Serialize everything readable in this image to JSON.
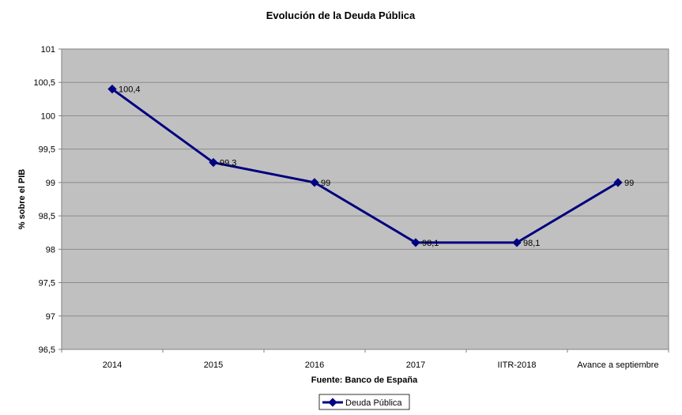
{
  "chart_data": {
    "type": "line",
    "title": "Evolución de la Deuda Pública",
    "xlabel": "Fuente: Banco de España",
    "ylabel": "% sobre el PIB",
    "categories": [
      "2014",
      "2015",
      "2016",
      "2017",
      "IITR-2018",
      "Avance a septiembre"
    ],
    "series": [
      {
        "name": "Deuda Pública",
        "values": [
          100.4,
          99.3,
          99,
          98.1,
          98.1,
          99
        ],
        "labels": [
          "100,4",
          "99,3",
          "99",
          "98,1",
          "98,1",
          "99"
        ],
        "color": "#000080"
      }
    ],
    "ylim": [
      96.5,
      101
    ],
    "yticks": [
      96.5,
      97,
      97.5,
      98,
      98.5,
      99,
      99.5,
      100,
      100.5,
      101
    ],
    "ytick_labels": [
      "96,5",
      "97",
      "97,5",
      "98",
      "98,5",
      "99",
      "99,5",
      "100",
      "100,5",
      "101"
    ],
    "grid": true,
    "legend_position": "bottom",
    "plot_background": "#c0c0c0"
  }
}
